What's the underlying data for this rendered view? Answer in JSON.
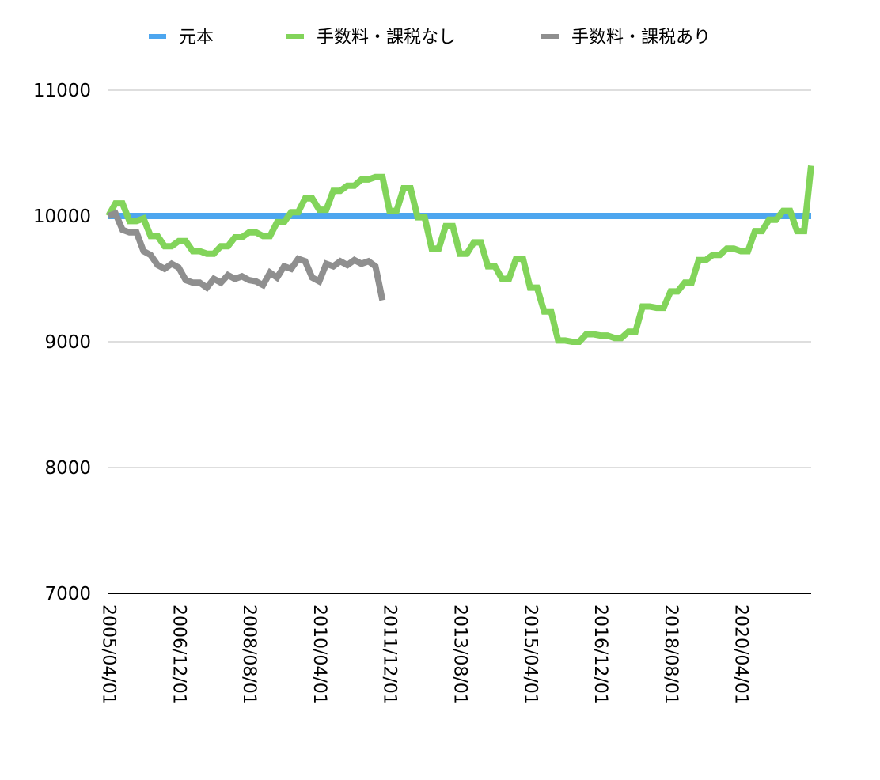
{
  "chart_data": {
    "type": "line",
    "title": "",
    "xlabel": "",
    "ylabel": "",
    "ylim": [
      7000,
      11000
    ],
    "yticks": [
      7000,
      8000,
      9000,
      10000,
      11000
    ],
    "xticks": [
      "2005/04/01",
      "2006/12/01",
      "2008/08/01",
      "2010/04/01",
      "2011/12/01",
      "2013/08/01",
      "2015/04/01",
      "2016/12/01",
      "2018/08/01",
      "2020/04/01"
    ],
    "x_start": "2005/04/01",
    "x_end": "2021/12/01",
    "grid": true,
    "legend": "top",
    "series": [
      {
        "name": "元本",
        "color": "#4da6ef",
        "points": [
          [
            "2005/04/01",
            10000
          ],
          [
            "2021/12/01",
            10000
          ]
        ]
      },
      {
        "name": "手数料・課税なし",
        "color": "#82d45a",
        "points": [
          [
            "2005/04/01",
            10000
          ],
          [
            "2005/06/01",
            10100
          ],
          [
            "2005/08/01",
            10100
          ],
          [
            "2005/10/01",
            9960
          ],
          [
            "2005/12/01",
            9960
          ],
          [
            "2006/02/01",
            9980
          ],
          [
            "2006/04/01",
            9840
          ],
          [
            "2006/06/01",
            9840
          ],
          [
            "2006/08/01",
            9760
          ],
          [
            "2006/10/01",
            9760
          ],
          [
            "2006/12/01",
            9800
          ],
          [
            "2007/02/01",
            9800
          ],
          [
            "2007/04/01",
            9720
          ],
          [
            "2007/06/01",
            9720
          ],
          [
            "2007/08/01",
            9700
          ],
          [
            "2007/10/01",
            9700
          ],
          [
            "2007/12/01",
            9760
          ],
          [
            "2008/02/01",
            9760
          ],
          [
            "2008/04/01",
            9830
          ],
          [
            "2008/06/01",
            9830
          ],
          [
            "2008/08/01",
            9870
          ],
          [
            "2008/10/01",
            9870
          ],
          [
            "2008/12/01",
            9840
          ],
          [
            "2009/02/01",
            9840
          ],
          [
            "2009/04/01",
            9950
          ],
          [
            "2009/06/01",
            9950
          ],
          [
            "2009/08/01",
            10030
          ],
          [
            "2009/10/01",
            10030
          ],
          [
            "2009/12/01",
            10140
          ],
          [
            "2010/02/01",
            10140
          ],
          [
            "2010/04/01",
            10050
          ],
          [
            "2010/06/01",
            10050
          ],
          [
            "2010/08/01",
            10200
          ],
          [
            "2010/10/01",
            10200
          ],
          [
            "2010/12/01",
            10240
          ],
          [
            "2011/02/01",
            10240
          ],
          [
            "2011/04/01",
            10290
          ],
          [
            "2011/06/01",
            10290
          ],
          [
            "2011/08/01",
            10310
          ],
          [
            "2011/10/01",
            10310
          ],
          [
            "2011/12/01",
            10040
          ],
          [
            "2012/02/01",
            10040
          ],
          [
            "2012/04/01",
            10220
          ],
          [
            "2012/06/01",
            10220
          ],
          [
            "2012/08/01",
            9990
          ],
          [
            "2012/10/01",
            9990
          ],
          [
            "2012/12/01",
            9740
          ],
          [
            "2013/02/01",
            9740
          ],
          [
            "2013/04/01",
            9920
          ],
          [
            "2013/06/01",
            9920
          ],
          [
            "2013/08/01",
            9700
          ],
          [
            "2013/10/01",
            9700
          ],
          [
            "2013/12/01",
            9790
          ],
          [
            "2014/02/01",
            9790
          ],
          [
            "2014/04/01",
            9600
          ],
          [
            "2014/06/01",
            9600
          ],
          [
            "2014/08/01",
            9500
          ],
          [
            "2014/10/01",
            9500
          ],
          [
            "2014/12/01",
            9660
          ],
          [
            "2015/02/01",
            9660
          ],
          [
            "2015/04/01",
            9430
          ],
          [
            "2015/06/01",
            9430
          ],
          [
            "2015/08/01",
            9240
          ],
          [
            "2015/10/01",
            9240
          ],
          [
            "2015/12/01",
            9010
          ],
          [
            "2016/02/01",
            9010
          ],
          [
            "2016/04/01",
            9000
          ],
          [
            "2016/06/01",
            9000
          ],
          [
            "2016/08/01",
            9060
          ],
          [
            "2016/10/01",
            9060
          ],
          [
            "2016/12/01",
            9050
          ],
          [
            "2017/02/01",
            9050
          ],
          [
            "2017/04/01",
            9030
          ],
          [
            "2017/06/01",
            9030
          ],
          [
            "2017/08/01",
            9080
          ],
          [
            "2017/10/01",
            9080
          ],
          [
            "2017/12/01",
            9280
          ],
          [
            "2018/02/01",
            9280
          ],
          [
            "2018/04/01",
            9270
          ],
          [
            "2018/06/01",
            9270
          ],
          [
            "2018/08/01",
            9400
          ],
          [
            "2018/10/01",
            9400
          ],
          [
            "2018/12/01",
            9470
          ],
          [
            "2019/02/01",
            9470
          ],
          [
            "2019/04/01",
            9650
          ],
          [
            "2019/06/01",
            9650
          ],
          [
            "2019/08/01",
            9690
          ],
          [
            "2019/10/01",
            9690
          ],
          [
            "2019/12/01",
            9740
          ],
          [
            "2020/02/01",
            9740
          ],
          [
            "2020/04/01",
            9720
          ],
          [
            "2020/06/01",
            9720
          ],
          [
            "2020/08/01",
            9880
          ],
          [
            "2020/10/01",
            9880
          ],
          [
            "2020/12/01",
            9970
          ],
          [
            "2021/02/01",
            9970
          ],
          [
            "2021/04/01",
            10040
          ],
          [
            "2021/06/01",
            10040
          ],
          [
            "2021/08/01",
            9880
          ],
          [
            "2021/10/01",
            9880
          ],
          [
            "2021/12/01",
            10400
          ]
        ]
      },
      {
        "name": "手数料・課税あり",
        "color": "#8f8f8f",
        "points": [
          [
            "2005/04/01",
            10000
          ],
          [
            "2005/06/01",
            10020
          ],
          [
            "2005/08/01",
            9890
          ],
          [
            "2005/10/01",
            9870
          ],
          [
            "2005/12/01",
            9870
          ],
          [
            "2006/02/01",
            9720
          ],
          [
            "2006/04/01",
            9690
          ],
          [
            "2006/06/01",
            9610
          ],
          [
            "2006/08/01",
            9580
          ],
          [
            "2006/10/01",
            9620
          ],
          [
            "2006/12/01",
            9590
          ],
          [
            "2007/02/01",
            9490
          ],
          [
            "2007/04/01",
            9470
          ],
          [
            "2007/06/01",
            9470
          ],
          [
            "2007/08/01",
            9430
          ],
          [
            "2007/10/01",
            9500
          ],
          [
            "2007/12/01",
            9470
          ],
          [
            "2008/02/01",
            9530
          ],
          [
            "2008/04/01",
            9500
          ],
          [
            "2008/06/01",
            9520
          ],
          [
            "2008/08/01",
            9490
          ],
          [
            "2008/10/01",
            9480
          ],
          [
            "2008/12/01",
            9450
          ],
          [
            "2009/02/01",
            9550
          ],
          [
            "2009/04/01",
            9510
          ],
          [
            "2009/06/01",
            9600
          ],
          [
            "2009/08/01",
            9580
          ],
          [
            "2009/10/01",
            9660
          ],
          [
            "2009/12/01",
            9640
          ],
          [
            "2010/02/01",
            9510
          ],
          [
            "2010/04/01",
            9480
          ],
          [
            "2010/06/01",
            9620
          ],
          [
            "2010/08/01",
            9600
          ],
          [
            "2010/10/01",
            9640
          ],
          [
            "2010/12/01",
            9610
          ],
          [
            "2011/02/01",
            9650
          ],
          [
            "2011/04/01",
            9620
          ],
          [
            "2011/06/01",
            9640
          ],
          [
            "2011/08/01",
            9600
          ],
          [
            "2011/10/01",
            9330
          ]
        ]
      }
    ]
  }
}
